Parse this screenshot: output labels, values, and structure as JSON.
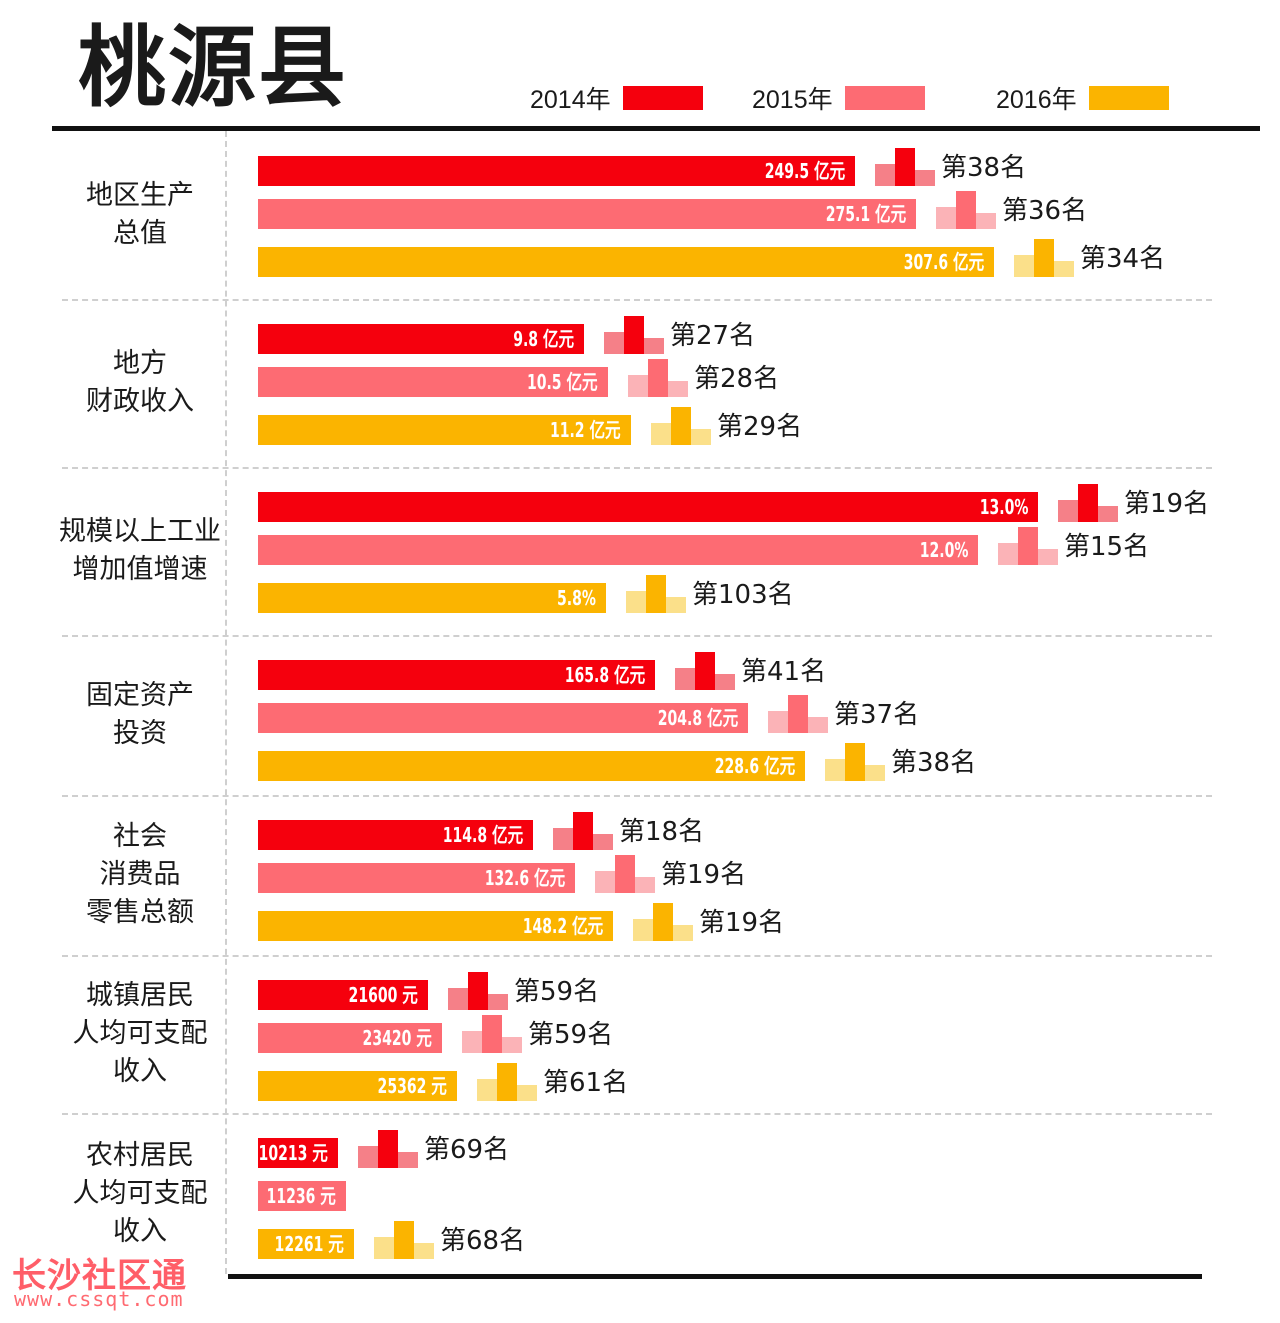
{
  "title": "桃源县",
  "legend": [
    {
      "label": "2014年",
      "color": "#f5000d"
    },
    {
      "label": "2015年",
      "color": "#fd6b73"
    },
    {
      "label": "2016年",
      "color": "#fbb400"
    }
  ],
  "watermark": {
    "name": "长沙社区通",
    "url": "www.cssqt.com"
  },
  "chart_data": {
    "type": "bar",
    "orientation": "horizontal",
    "series_names": [
      "2014年",
      "2015年",
      "2016年"
    ],
    "groups": [
      {
        "category": "地区生产\n总值",
        "unit": "亿元",
        "bars": [
          {
            "value": 249.5,
            "label": "249.5 亿元",
            "rank": "第38名"
          },
          {
            "value": 275.1,
            "label": "275.1 亿元",
            "rank": "第36名"
          },
          {
            "value": 307.6,
            "label": "307.6 亿元",
            "rank": "第34名"
          }
        ]
      },
      {
        "category": "地方\n财政收入",
        "unit": "亿元",
        "bars": [
          {
            "value": 9.8,
            "label": "9.8 亿元",
            "rank": "第27名"
          },
          {
            "value": 10.5,
            "label": "10.5 亿元",
            "rank": "第28名"
          },
          {
            "value": 11.2,
            "label": "11.2 亿元",
            "rank": "第29名"
          }
        ]
      },
      {
        "category": "规模以上工业\n增加值增速",
        "unit": "%",
        "bars": [
          {
            "value": 13.0,
            "label": "13.0%",
            "rank": "第19名"
          },
          {
            "value": 12.0,
            "label": "12.0%",
            "rank": "第15名"
          },
          {
            "value": 5.8,
            "label": "5.8%",
            "rank": "第103名"
          }
        ]
      },
      {
        "category": "固定资产\n投资",
        "unit": "亿元",
        "bars": [
          {
            "value": 165.8,
            "label": "165.8 亿元",
            "rank": "第41名"
          },
          {
            "value": 204.8,
            "label": "204.8 亿元",
            "rank": "第37名"
          },
          {
            "value": 228.6,
            "label": "228.6 亿元",
            "rank": "第38名"
          }
        ]
      },
      {
        "category": "社会\n消费品\n零售总额",
        "unit": "亿元",
        "bars": [
          {
            "value": 114.8,
            "label": "114.8 亿元",
            "rank": "第18名"
          },
          {
            "value": 132.6,
            "label": "132.6 亿元",
            "rank": "第19名"
          },
          {
            "value": 148.2,
            "label": "148.2 亿元",
            "rank": "第19名"
          }
        ]
      },
      {
        "category": "城镇居民\n人均可支配\n收入",
        "unit": "元",
        "bars": [
          {
            "value": 21600,
            "label": "21600 元",
            "rank": "第59名"
          },
          {
            "value": 23420,
            "label": "23420 元",
            "rank": "第59名"
          },
          {
            "value": 25362,
            "label": "25362 元",
            "rank": "第61名"
          }
        ]
      },
      {
        "category": "农村居民\n人均可支配\n收入",
        "unit": "元",
        "bars": [
          {
            "value": 10213,
            "label": "10213 元",
            "rank": "第69名"
          },
          {
            "value": 11236,
            "label": "11236 元",
            "rank": null
          },
          {
            "value": 12261,
            "label": "12261 元",
            "rank": "第68名"
          }
        ]
      }
    ]
  }
}
